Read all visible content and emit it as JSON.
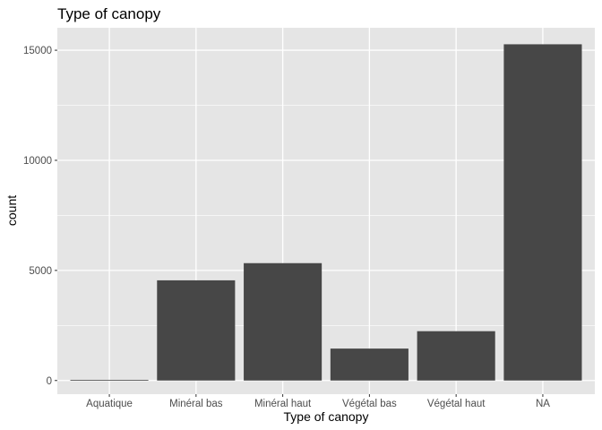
{
  "chart_data": {
    "type": "bar",
    "title": "Type of canopy",
    "xlabel": "Type of canopy",
    "ylabel": "count",
    "categories": [
      "Aquatique",
      "Minéral bas",
      "Minéral haut",
      "Végétal bas",
      "Végétal haut",
      "NA"
    ],
    "values": [
      30,
      4550,
      5330,
      1450,
      2240,
      15270
    ],
    "ylim": [
      -620,
      16020
    ],
    "yticks": [
      0,
      5000,
      10000,
      15000
    ],
    "ytick_labels": [
      "0",
      "5000",
      "10000",
      "15000"
    ],
    "grid": true,
    "legend": "none",
    "colors": {
      "panel_background": "#e5e5e5",
      "grid_major": "#ffffff",
      "bar_fill": "#474747",
      "tick_label": "#4d4d4d",
      "text": "#000000"
    }
  }
}
